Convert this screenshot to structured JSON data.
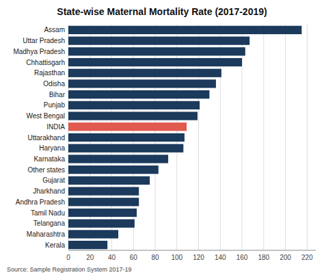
{
  "chart_data": {
    "type": "bar",
    "orientation": "horizontal",
    "title": "State-wise Maternal Mortality Rate (2017-2019)",
    "annotation": "Source: Sample Registration System 2017-19",
    "categories": [
      "Assam",
      "Uttar Pradesh",
      "Madhya Pradesh",
      "Chhattisgarh",
      "Rajasthan",
      "Odisha",
      "Bihar",
      "Punjab",
      "West Bengal",
      "INDIA",
      "Uttarakhand",
      "Haryana",
      "Karnataka",
      "Other states",
      "Gujarat",
      "Jharkhand",
      "Andhra Pradesh",
      "Tamil Nadu",
      "Telangana",
      "Maharashtra",
      "Kerala"
    ],
    "values": [
      215,
      167,
      163,
      160,
      141,
      136,
      130,
      121,
      119,
      109,
      107,
      106,
      92,
      83,
      75,
      65,
      65,
      63,
      61,
      46,
      36
    ],
    "colors": [
      "#1b3a5c",
      "#1b3a5c",
      "#1b3a5c",
      "#1b3a5c",
      "#1b3a5c",
      "#1b3a5c",
      "#1b3a5c",
      "#1b3a5c",
      "#1b3a5c",
      "#e05a4e",
      "#1b3a5c",
      "#1b3a5c",
      "#1b3a5c",
      "#1b3a5c",
      "#1b3a5c",
      "#1b3a5c",
      "#1b3a5c",
      "#1b3a5c",
      "#1b3a5c",
      "#1b3a5c",
      "#1b3a5c"
    ],
    "xlim": [
      0,
      228
    ],
    "xticks": [
      0,
      20,
      40,
      60,
      80,
      100,
      120,
      140,
      160,
      180,
      200,
      220
    ],
    "grid": true
  }
}
